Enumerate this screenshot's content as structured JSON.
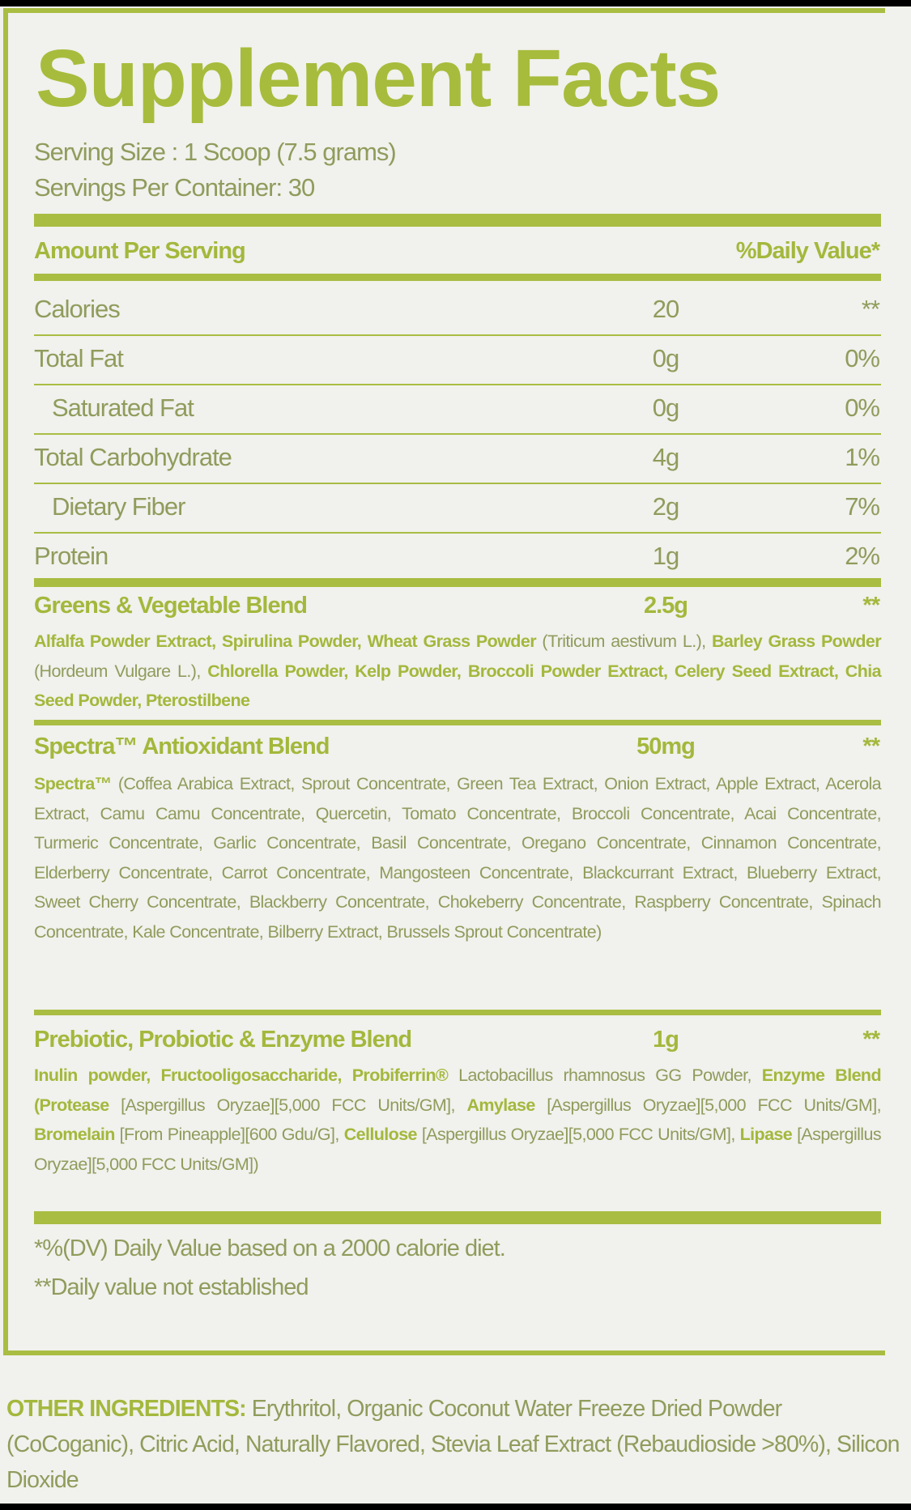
{
  "title": "Supplement Facts",
  "serving_size": "Serving Size : 1 Scoop (7.5 grams)",
  "servings_per_container": "Servings Per Container: 30",
  "header": {
    "amount": "Amount Per Serving",
    "dv": "%Daily Value*"
  },
  "nutrients": [
    {
      "label": "Calories",
      "amount": "20",
      "dv": "**"
    },
    {
      "label": "Total Fat",
      "amount": "0g",
      "dv": "0%"
    },
    {
      "label": "Saturated Fat",
      "amount": "0g",
      "dv": "0%"
    },
    {
      "label": "Total Carbohydrate",
      "amount": "4g",
      "dv": "1%"
    },
    {
      "label": "Dietary Fiber",
      "amount": "2g",
      "dv": "7%"
    },
    {
      "label": "Protein",
      "amount": "1g",
      "dv": "2%"
    }
  ],
  "blends": [
    {
      "name": "Greens & Vegetable Blend",
      "amount": "2.5g",
      "dv": "**",
      "segments": [
        {
          "text": "Alfalfa Powder Extract, Spirulina Powder, Wheat Grass Powder",
          "bold": true
        },
        {
          "text": " (Triticum aestivum L.), ",
          "bold": false
        },
        {
          "text": "Barley Grass Powder",
          "bold": true
        },
        {
          "text": " (Hordeum Vulgare L.), ",
          "bold": false
        },
        {
          "text": "Chlorella Powder, Kelp Powder, Broccoli Powder Extract, Celery Seed Extract, Chia Seed Powder, Pterostilbene",
          "bold": true
        }
      ]
    },
    {
      "name": "Spectra™ Antioxidant Blend",
      "amount": "50mg",
      "dv": "**",
      "segments": [
        {
          "text": "Spectra™",
          "bold": true
        },
        {
          "text": " (Coffea Arabica Extract, Sprout Concentrate, Green Tea Extract, Onion Extract, Apple Extract, Acerola Extract, Camu Camu Concentrate, Quercetin, Tomato Concentrate, Broccoli Concentrate, Acai Concentrate, Turmeric Concentrate, Garlic Concentrate, Basil Concentrate, Oregano Concentrate, Cinnamon Concentrate, Elderberry Concentrate, Carrot Concentrate, Mangosteen Concentrate, Blackcurrant Extract, Blueberry Extract, Sweet Cherry Concentrate, Blackberry Concentrate, Chokeberry Concentrate, Raspberry Concentrate, Spinach Concentrate, Kale Concentrate, Bilberry Extract, Brussels Sprout Concentrate)",
          "bold": false
        }
      ]
    },
    {
      "name": "Prebiotic, Probiotic & Enzyme Blend",
      "amount": "1g",
      "dv": "**",
      "segments": [
        {
          "text": "Inulin powder, Fructooligosaccharide, Probiferrin®",
          "bold": true
        },
        {
          "text": " Lactobacillus rhamnosus GG Powder, ",
          "bold": false
        },
        {
          "text": "Enzyme Blend (Protease",
          "bold": true
        },
        {
          "text": " [Aspergillus Oryzae][5,000 FCC Units/GM], ",
          "bold": false
        },
        {
          "text": "Amylase",
          "bold": true
        },
        {
          "text": " [Aspergillus Oryzae][5,000 FCC Units/GM], ",
          "bold": false
        },
        {
          "text": "Bromelain",
          "bold": true
        },
        {
          "text": " [From Pineapple][600 Gdu/G], ",
          "bold": false
        },
        {
          "text": "Cellulose",
          "bold": true
        },
        {
          "text": " [Aspergillus Oryzae][5,000 FCC Units/GM], ",
          "bold": false
        },
        {
          "text": "Lipase",
          "bold": true
        },
        {
          "text": " [Aspergillus Oryzae][5,000 FCC Units/GM])",
          "bold": false
        }
      ]
    }
  ],
  "footnotes": [
    "*%(DV) Daily Value based on a 2000 calorie diet.",
    "**Daily value not established"
  ],
  "other_ingredients": {
    "label": "OTHER INGREDIENTS:",
    "text": " Erythritol, Organic Coconut Water Freeze Dried Powder (CoCoganic), Citric Acid, Naturally Flavored, Stevia Leaf Extract (Rebaudioside >80%), Silicon Dioxide"
  },
  "colors": {
    "accent": "#a9bd42",
    "text": "#8f9c5c",
    "background": "#f1f1ed"
  }
}
